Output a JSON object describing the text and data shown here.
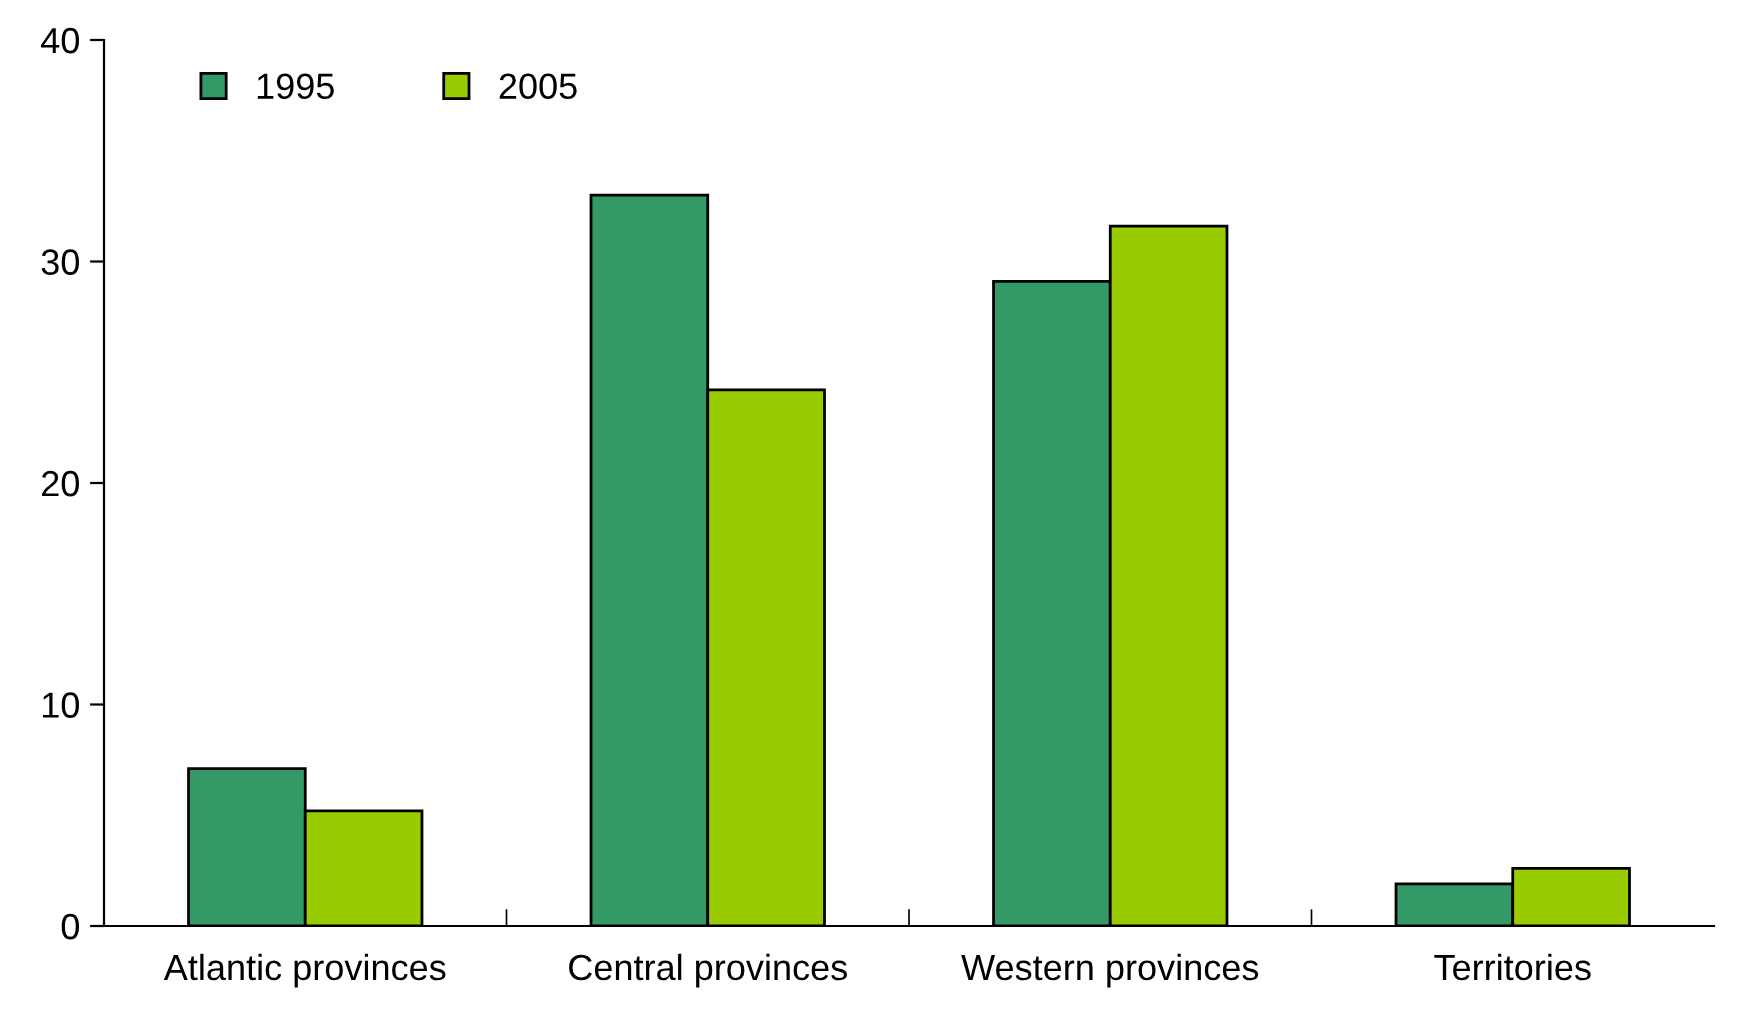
{
  "chart_data": {
    "type": "bar",
    "categories": [
      "Atlantic provinces",
      "Central provinces",
      "Western provinces",
      "Territories"
    ],
    "series": [
      {
        "name": "1995",
        "color": "#339966",
        "values": [
          7.1,
          33.0,
          29.1,
          1.9
        ]
      },
      {
        "name": "2005",
        "color": "#99cc00",
        "values": [
          5.2,
          24.2,
          31.6,
          2.6
        ]
      }
    ],
    "ylim": [
      0,
      40
    ],
    "yticks": [
      0,
      10,
      20,
      30,
      40
    ],
    "grid": false,
    "legend": "top left"
  }
}
